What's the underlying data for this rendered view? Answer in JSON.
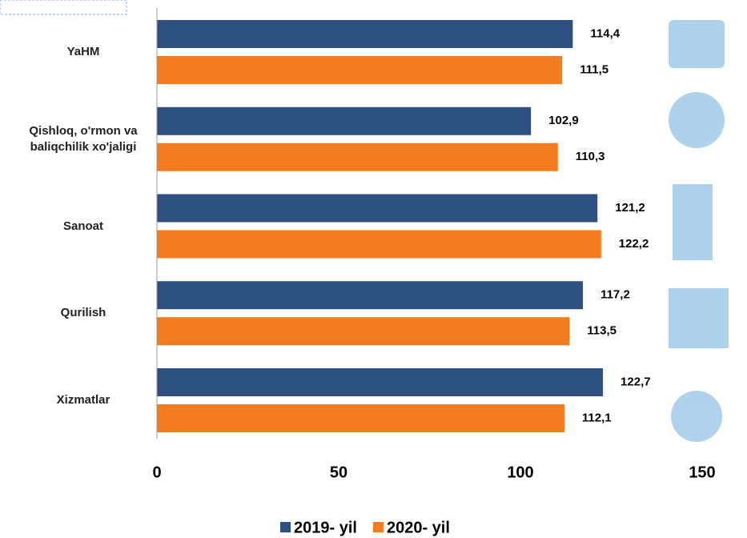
{
  "chart_data": {
    "type": "hbar",
    "categories": [
      "YaHM",
      "Qishloq, o'rmon va baliqchilik xo'jaligi",
      "Sanoat",
      "Qurilish",
      "Xizmatlar"
    ],
    "series": [
      {
        "name": "2019- yil",
        "color": "#2e5080",
        "values": [
          114.4,
          102.9,
          121.2,
          117.2,
          122.7
        ],
        "value_labels": [
          "114,4",
          "102,9",
          "121,2",
          "117,2",
          "122,7"
        ]
      },
      {
        "name": "2020- yil",
        "color": "#f47c20",
        "values": [
          111.5,
          110.3,
          122.2,
          113.5,
          112.1
        ],
        "value_labels": [
          "111,5",
          "110,3",
          "122,2",
          "113,5",
          "112,1"
        ]
      }
    ],
    "xlim": [
      0,
      150
    ],
    "xticks": [
      0,
      50,
      100,
      150
    ]
  }
}
